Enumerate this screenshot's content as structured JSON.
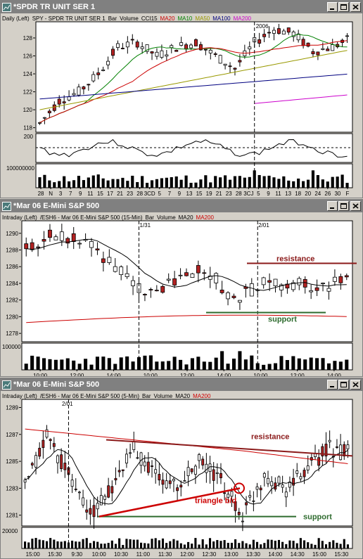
{
  "windows": [
    {
      "id": "w1",
      "title": "*SPDR TR UNIT SER 1",
      "legend": [
        {
          "text": "Daily (Left)",
          "color": "#000000"
        },
        {
          "text": "SPY - SPDR TR UNIT SER 1",
          "color": "#000000"
        },
        {
          "text": "Bar",
          "color": "#000000"
        },
        {
          "text": "Volume",
          "color": "#000000"
        },
        {
          "text": "CCI15",
          "color": "#000000"
        },
        {
          "text": "MA20",
          "color": "#cc0000"
        },
        {
          "text": "MA10",
          "color": "#008000"
        },
        {
          "text": "MA50",
          "color": "#999900"
        },
        {
          "text": "MA100",
          "color": "#000080"
        },
        {
          "text": "MA200",
          "color": "#cc00cc"
        }
      ],
      "price_axis": [
        "128",
        "126",
        "124",
        "122",
        "120",
        "118"
      ],
      "date_marker": "2006",
      "cci_label": "200",
      "volume_label": "100000000",
      "time_axis": [
        "28",
        "N",
        "3",
        "7",
        "9",
        "11",
        "15",
        "17",
        "21",
        "23",
        "28",
        "3CD",
        "5",
        "7",
        "9",
        "13",
        "15",
        "19",
        "21",
        "23",
        "28",
        "3CJ",
        "5",
        "9",
        "11",
        "13",
        "18",
        "20",
        "24",
        "26",
        "30",
        "F"
      ]
    },
    {
      "id": "w2",
      "title": "*Mar 06  E-Mini S&P 500",
      "legend": [
        {
          "text": "Intraday  (Left)",
          "color": "#000000"
        },
        {
          "text": "/ESH6 - Mar 06  E-Mini S&P 500  (15-Min)",
          "color": "#000000"
        },
        {
          "text": "Bar",
          "color": "#000000"
        },
        {
          "text": "Volume",
          "color": "#000000"
        },
        {
          "text": "MA20",
          "color": "#000000"
        },
        {
          "text": "MA200",
          "color": "#cc0000"
        }
      ],
      "price_axis": [
        "1290",
        "1288",
        "1286",
        "1284",
        "1282",
        "1280",
        "1278"
      ],
      "date_markers": [
        "1/31",
        "2/01"
      ],
      "volume_label": "100000",
      "time_axis": [
        "10:00",
        "12:00",
        "14:00",
        "10:00",
        "12:00",
        "14:00",
        "10:00",
        "12:00",
        "14:00"
      ],
      "annotations": {
        "resistance": "resistance",
        "support": "support"
      }
    },
    {
      "id": "w3",
      "title": "*Mar 06  E-Mini S&P 500",
      "legend": [
        {
          "text": "Intraday  (Left)",
          "color": "#000000"
        },
        {
          "text": "/ESH6 - Mar 06  E-Mini S&P 500  (5-Min)",
          "color": "#000000"
        },
        {
          "text": "Bar",
          "color": "#000000"
        },
        {
          "text": "Volume",
          "color": "#000000"
        },
        {
          "text": "MA20",
          "color": "#000000"
        },
        {
          "text": "MA200",
          "color": "#cc0000"
        }
      ],
      "price_axis": [
        "1289",
        "1287",
        "1285",
        "1283",
        "1281"
      ],
      "date_marker": "2/01",
      "volume_label": "20000",
      "time_axis": [
        "15:00",
        "15:30",
        "9:30",
        "10:00",
        "10:30",
        "11:00",
        "11:30",
        "12:00",
        "12:30",
        "13:00",
        "13:30",
        "14:00",
        "14:30",
        "15:00",
        "15:30"
      ],
      "annotations": {
        "resistance": "resistance",
        "support": "support",
        "triangle": "triangle b/d"
      }
    }
  ],
  "colors": {
    "bull": "#ffffff",
    "bear": "#b22222",
    "ma20": "#cc0000",
    "ma10": "#008000",
    "ma50": "#999900",
    "ma100": "#000080",
    "ma200": "#cc00cc",
    "resistance": "#8b1a1a",
    "support": "#2e6b2e",
    "triangle": "#cc0000"
  }
}
